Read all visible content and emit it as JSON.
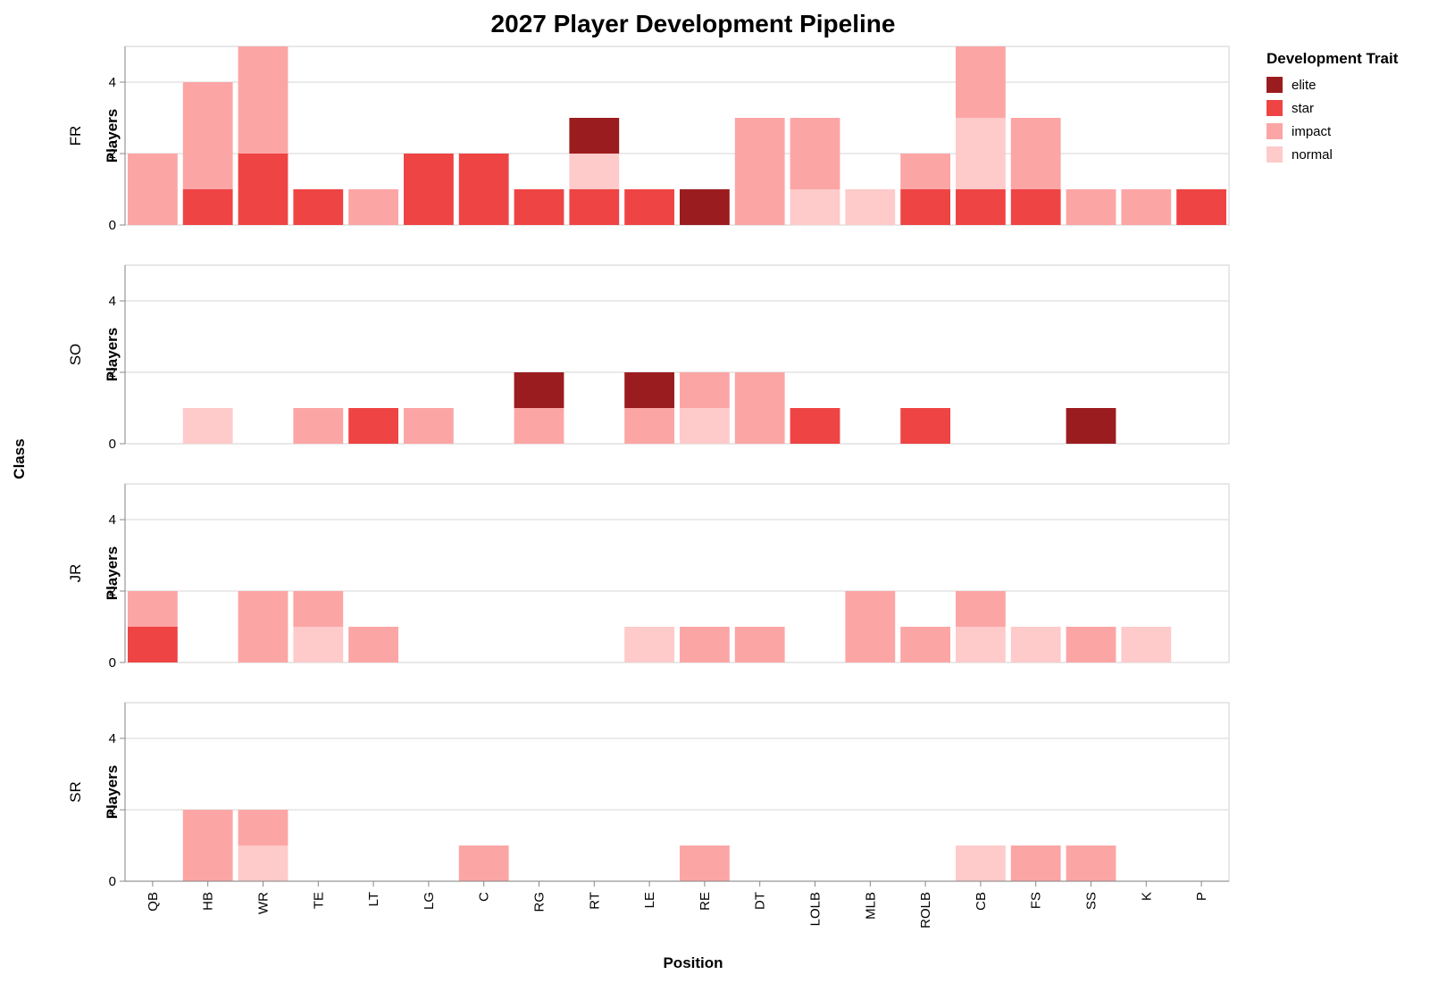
{
  "chart_data": {
    "type": "bar",
    "stacked": true,
    "faceted": true,
    "title": "2027 Player Development Pipeline",
    "xlabel": "Position",
    "ylabel": "Players",
    "facet_label": "Class",
    "ylim": [
      0,
      5
    ],
    "yticks": [
      0,
      2,
      4
    ],
    "grid": true,
    "legend_position": "top-right",
    "legend_title": "Development Trait",
    "categories": [
      "QB",
      "HB",
      "WR",
      "TE",
      "LT",
      "LG",
      "C",
      "RG",
      "RT",
      "LE",
      "RE",
      "DT",
      "LOLB",
      "MLB",
      "ROLB",
      "CB",
      "FS",
      "SS",
      "K",
      "P"
    ],
    "traits": [
      {
        "name": "elite",
        "color": "#9b1c1f"
      },
      {
        "name": "star",
        "color": "#ef4444"
      },
      {
        "name": "impact",
        "color": "#fca5a5"
      },
      {
        "name": "normal",
        "color": "#fecaca"
      }
    ],
    "stack_order": [
      "star",
      "normal",
      "impact",
      "elite"
    ],
    "facets": [
      {
        "label": "FR",
        "values": {
          "QB": {
            "impact": 2
          },
          "HB": {
            "star": 1,
            "impact": 3
          },
          "WR": {
            "star": 2,
            "impact": 3
          },
          "TE": {
            "star": 1
          },
          "LT": {
            "impact": 1
          },
          "LG": {
            "star": 2
          },
          "C": {
            "star": 2
          },
          "RG": {
            "star": 1
          },
          "RT": {
            "star": 1,
            "normal": 1,
            "elite": 1
          },
          "LE": {
            "star": 1
          },
          "RE": {
            "elite": 1
          },
          "DT": {
            "impact": 3
          },
          "LOLB": {
            "normal": 1,
            "impact": 2
          },
          "MLB": {
            "normal": 1
          },
          "ROLB": {
            "star": 1,
            "impact": 1
          },
          "CB": {
            "star": 1,
            "normal": 2,
            "impact": 2
          },
          "FS": {
            "star": 1,
            "impact": 2
          },
          "SS": {
            "impact": 1
          },
          "K": {
            "impact": 1
          },
          "P": {
            "star": 1
          }
        }
      },
      {
        "label": "SO",
        "values": {
          "HB": {
            "normal": 1
          },
          "TE": {
            "impact": 1
          },
          "LT": {
            "star": 1
          },
          "LG": {
            "impact": 1
          },
          "RG": {
            "impact": 1,
            "elite": 1
          },
          "LE": {
            "impact": 1,
            "elite": 1
          },
          "RE": {
            "normal": 1,
            "impact": 1
          },
          "DT": {
            "impact": 2
          },
          "LOLB": {
            "star": 1
          },
          "ROLB": {
            "star": 1
          },
          "SS": {
            "elite": 1
          }
        }
      },
      {
        "label": "JR",
        "values": {
          "QB": {
            "star": 1,
            "impact": 1
          },
          "WR": {
            "impact": 2
          },
          "TE": {
            "normal": 1,
            "impact": 1
          },
          "LT": {
            "impact": 1
          },
          "LE": {
            "normal": 1
          },
          "RE": {
            "impact": 1
          },
          "DT": {
            "impact": 1
          },
          "MLB": {
            "impact": 2
          },
          "ROLB": {
            "impact": 1
          },
          "CB": {
            "normal": 1,
            "impact": 1
          },
          "FS": {
            "normal": 1
          },
          "SS": {
            "impact": 1
          },
          "K": {
            "normal": 1
          }
        }
      },
      {
        "label": "SR",
        "values": {
          "HB": {
            "impact": 2
          },
          "WR": {
            "normal": 1,
            "impact": 1
          },
          "C": {
            "impact": 1
          },
          "RE": {
            "impact": 1
          },
          "CB": {
            "normal": 1
          },
          "FS": {
            "impact": 1
          },
          "SS": {
            "impact": 1
          }
        }
      }
    ]
  }
}
